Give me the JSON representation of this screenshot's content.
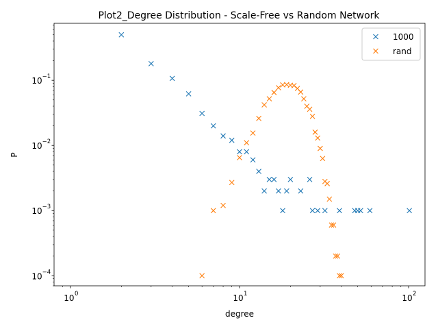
{
  "chart_data": {
    "type": "scatter",
    "title": "Plot2_Degree Distribution - Scale-Free vs Random Network",
    "xlabel": "degree",
    "ylabel": "P",
    "xscale": "log",
    "yscale": "log",
    "xlim": [
      0.8,
      125
    ],
    "ylim": [
      7e-05,
      0.75
    ],
    "xticks": [
      {
        "value": 1,
        "label": "10",
        "exp": "0"
      },
      {
        "value": 10,
        "label": "10",
        "exp": "1"
      },
      {
        "value": 100,
        "label": "10",
        "exp": "2"
      }
    ],
    "yticks": [
      {
        "value": 0.0001,
        "label": "10",
        "exp": "−4"
      },
      {
        "value": 0.001,
        "label": "10",
        "exp": "−3"
      },
      {
        "value": 0.01,
        "label": "10",
        "exp": "−2"
      },
      {
        "value": 0.1,
        "label": "10",
        "exp": "−1"
      }
    ],
    "grid": false,
    "legend_position": "top-right",
    "marker": "x",
    "series": [
      {
        "name": "1000",
        "color": "#1f77b4",
        "points": [
          [
            2,
            0.5
          ],
          [
            3,
            0.18
          ],
          [
            4,
            0.107
          ],
          [
            5,
            0.062
          ],
          [
            6,
            0.031
          ],
          [
            7,
            0.02
          ],
          [
            8,
            0.014
          ],
          [
            9,
            0.012
          ],
          [
            10,
            0.008
          ],
          [
            11,
            0.008
          ],
          [
            12,
            0.006
          ],
          [
            13,
            0.004
          ],
          [
            14,
            0.002
          ],
          [
            15,
            0.003
          ],
          [
            16,
            0.003
          ],
          [
            17,
            0.002
          ],
          [
            18,
            0.001
          ],
          [
            19,
            0.002
          ],
          [
            20,
            0.003
          ],
          [
            23,
            0.002
          ],
          [
            26,
            0.003
          ],
          [
            27,
            0.001
          ],
          [
            29,
            0.001
          ],
          [
            32,
            0.001
          ],
          [
            39,
            0.001
          ],
          [
            48,
            0.001
          ],
          [
            50,
            0.001
          ],
          [
            52,
            0.001
          ],
          [
            59,
            0.001
          ],
          [
            101,
            0.001
          ]
        ]
      },
      {
        "name": "rand",
        "color": "#ff7f0e",
        "points": [
          [
            6,
            0.0001
          ],
          [
            7,
            0.001
          ],
          [
            8,
            0.0012
          ],
          [
            9,
            0.0027
          ],
          [
            10,
            0.0065
          ],
          [
            11,
            0.011
          ],
          [
            12,
            0.0155
          ],
          [
            13,
            0.026
          ],
          [
            14,
            0.042
          ],
          [
            15,
            0.052
          ],
          [
            16,
            0.065
          ],
          [
            17,
            0.077
          ],
          [
            18,
            0.085
          ],
          [
            19,
            0.086
          ],
          [
            20,
            0.084
          ],
          [
            21,
            0.083
          ],
          [
            22,
            0.075
          ],
          [
            23,
            0.066
          ],
          [
            24,
            0.052
          ],
          [
            25,
            0.04
          ],
          [
            26,
            0.036
          ],
          [
            27,
            0.028
          ],
          [
            28,
            0.016
          ],
          [
            29,
            0.013
          ],
          [
            30,
            0.009
          ],
          [
            31,
            0.0063
          ],
          [
            32,
            0.0028
          ],
          [
            33,
            0.0026
          ],
          [
            34,
            0.0015
          ],
          [
            35,
            0.0006
          ],
          [
            36,
            0.0006
          ],
          [
            37,
            0.0002
          ],
          [
            38,
            0.0002
          ],
          [
            39,
            0.0001
          ],
          [
            40,
            0.0001
          ]
        ]
      }
    ]
  }
}
